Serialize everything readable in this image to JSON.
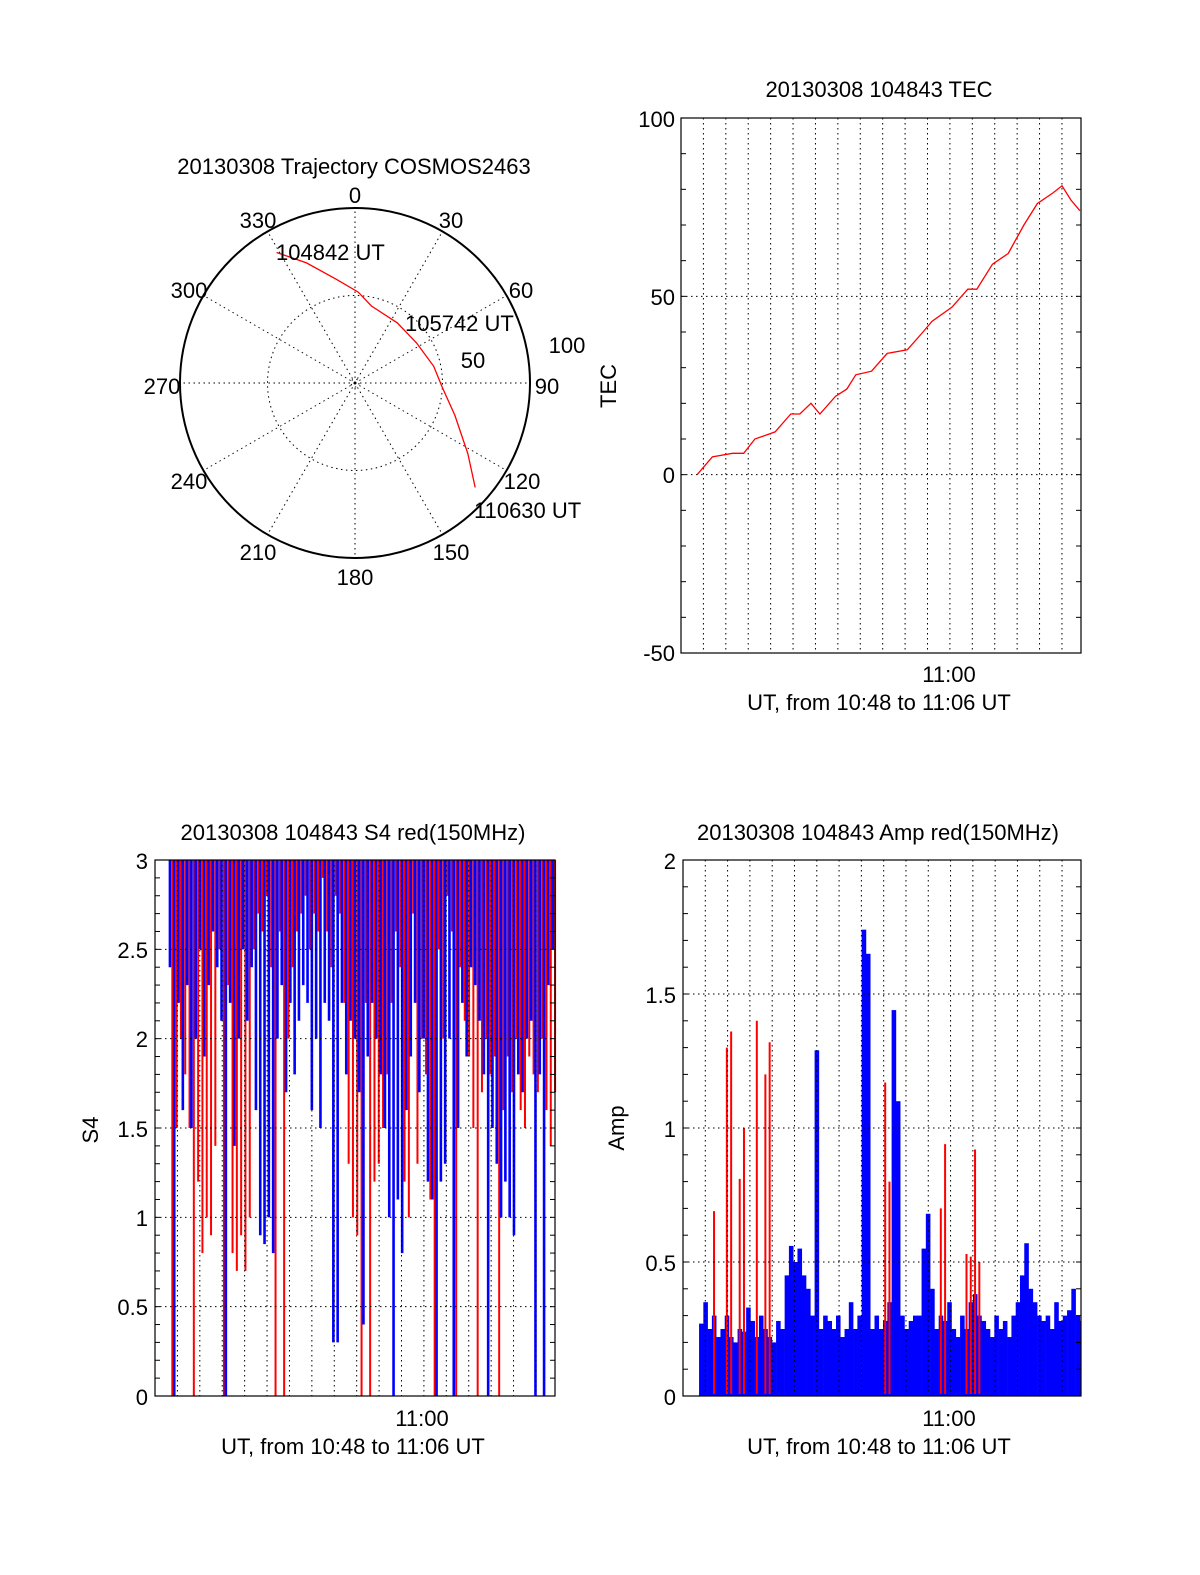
{
  "chart_data": [
    {
      "type": "polar",
      "title": "20130308 Trajectory COSMOS2463",
      "angle_labels": [
        "0",
        "30",
        "60",
        "90",
        "120",
        "150",
        "180",
        "210",
        "240",
        "270",
        "300",
        "330"
      ],
      "radial_labels": [
        "50",
        "100"
      ],
      "rlim": [
        0,
        100
      ],
      "grid": true,
      "series": [
        {
          "name": "trajectory",
          "color": "#ff0000",
          "points_az_r": [
            [
              329,
              87
            ],
            [
              338,
              74
            ],
            [
              350,
              60
            ],
            [
              2,
              52
            ],
            [
              12,
              45
            ],
            [
              35,
              42
            ],
            [
              57,
              42
            ],
            [
              78,
              46
            ],
            [
              93,
              50
            ],
            [
              108,
              60
            ],
            [
              122,
              76
            ],
            [
              131,
              91
            ]
          ]
        }
      ],
      "annotations": [
        {
          "text": "104842 UT",
          "az": 329,
          "r": 87
        },
        {
          "text": "105742 UT",
          "az": 57,
          "r": 42
        },
        {
          "text": "110630 UT",
          "az": 131,
          "r": 91
        }
      ]
    },
    {
      "type": "line",
      "title": "20130308 104843 TEC",
      "xlabel": "UT, from 10:48 to 11:06 UT",
      "ylabel": "TEC",
      "x_units": "minutes after 10:00 UT",
      "xlim": [
        48.0,
        65.85
      ],
      "ylim": [
        -50,
        100
      ],
      "yticks": [
        "100",
        "50",
        "0",
        "-50"
      ],
      "xtick_label": "11:00",
      "grid": true,
      "series": [
        {
          "name": "TEC",
          "color": "#ff0000",
          "x": [
            48.72,
            49.4,
            50.3,
            50.8,
            51.3,
            52.2,
            52.9,
            53.3,
            53.8,
            54.2,
            54.9,
            55.4,
            55.8,
            56.5,
            57.2,
            58.1,
            58.8,
            59.2,
            60.1,
            60.8,
            61.2,
            61.9,
            62.6,
            63.3,
            63.9,
            64.6,
            65.0,
            65.4,
            65.8
          ],
          "y": [
            0,
            5,
            6,
            6,
            10,
            12,
            17,
            17,
            20,
            17,
            22,
            24,
            28,
            29,
            34,
            35,
            40,
            43,
            47,
            52,
            52,
            59,
            62,
            70,
            76,
            79,
            81,
            77,
            74
          ]
        }
      ]
    },
    {
      "type": "line",
      "title": "20130308 104843 S4 red(150MHz)",
      "xlabel": "UT, from 10:48 to 11:06 UT",
      "ylabel": "S4",
      "x_units": "minutes after 10:00 UT",
      "xlim": [
        48.0,
        65.85
      ],
      "ylim": [
        0,
        3
      ],
      "yticks": [
        "3",
        "2.5",
        "2",
        "1.5",
        "1",
        "0.5",
        "0"
      ],
      "xtick_label": "11:00",
      "grid": true,
      "x_start": 48.72,
      "x_end": 65.8,
      "series": [
        {
          "name": "red",
          "color": "#ff0000",
          "values": [
            0,
            1.5,
            2.0,
            1.8,
            1.5,
            0,
            1.2,
            0.8,
            1.0,
            0.9,
            1.4,
            2.5,
            0,
            2.3,
            0.8,
            0.7,
            0.9,
            0.7,
            1.0,
            2.5,
            2.7,
            2.6,
            2.8,
            2.4,
            0,
            2.6,
            0,
            2.0,
            2.4,
            2.6,
            2.7,
            2.8,
            2.5,
            2.7,
            2.6,
            2.9,
            2.6,
            2.4,
            2.8,
            2.7,
            2.2,
            1.3,
            1.0,
            0.9,
            0,
            2.2,
            0,
            1.2,
            1.3,
            1.5,
            1.8,
            2.2,
            2.6,
            2.4,
            1.2,
            1.0,
            2.7,
            1.3,
            2.0,
            1.8,
            1.1,
            0,
            2.5,
            2.0,
            2.8,
            2.6,
            0,
            2.4,
            2.1,
            1.9,
            1.5,
            0,
            1.7,
            2.0,
            1.8,
            1.9,
            0,
            1.6,
            1.9,
            1.7,
            2.0,
            1.6,
            1.5,
            1.9,
            1.8,
            1.7,
            2.0,
            1.6,
            1.4,
            1.7
          ]
        },
        {
          "name": "blue",
          "color": "#0000ff",
          "values": [
            2.4,
            0,
            2.2,
            1.6,
            2.3,
            1.5,
            2.0,
            2.5,
            1.9,
            2.3,
            2.6,
            2.4,
            2.1,
            0,
            2.2,
            1.4,
            2.0,
            2.5,
            2.1,
            2.4,
            1.6,
            0.9,
            0.85,
            1.0,
            0.8,
            2.0,
            2.3,
            1.7,
            2.2,
            1.8,
            2.1,
            2.3,
            2.2,
            1.6,
            2.0,
            1.5,
            2.2,
            2.1,
            0.3,
            0.3,
            2.2,
            1.8,
            2.1,
            2.0,
            1.7,
            0.4,
            1.9,
            2.2,
            2.0,
            1.8,
            1.5,
            1.0,
            0,
            1.1,
            0.8,
            1.6,
            1.9,
            2.2,
            1.7,
            2.0,
            1.2,
            1.1,
            0,
            1.2,
            1.3,
            2.0,
            0,
            1.5,
            2.2,
            1.9,
            2.4,
            2.3,
            2.1,
            1.8,
            0,
            1.5,
            1.3,
            1.0,
            1.2,
            1.0,
            0.9,
            1.8,
            1.7,
            2.0,
            2.1,
            0,
            1.8,
            0,
            2.3,
            2.5
          ]
        }
      ]
    },
    {
      "type": "bar",
      "title": "20130308 104843 Amp red(150MHz)",
      "xlabel": "UT, from 10:48 to 11:06 UT",
      "ylabel": "Amp",
      "x_units": "minutes after 10:00 UT",
      "xlim": [
        48.0,
        65.85
      ],
      "ylim": [
        0,
        2
      ],
      "yticks": [
        "2",
        "1.5",
        "1",
        "0.5",
        "0"
      ],
      "xtick_label": "11:00",
      "grid": true,
      "x_start": 48.72,
      "x_end": 65.8,
      "series": [
        {
          "name": "blue",
          "color": "#0000ff",
          "values": [
            0.27,
            0.35,
            0.25,
            0.3,
            0.22,
            0.25,
            0.3,
            0.22,
            0.2,
            0.25,
            0.24,
            0.33,
            0.28,
            0.22,
            0.3,
            0.25,
            0.22,
            0.2,
            0.28,
            0.25,
            0.45,
            0.56,
            0.5,
            0.55,
            0.45,
            0.4,
            0.3,
            1.29,
            0.25,
            0.3,
            0.28,
            0.25,
            0.3,
            0.22,
            0.25,
            0.35,
            0.25,
            0.3,
            1.74,
            1.65,
            0.25,
            0.3,
            0.25,
            0.28,
            0.35,
            1.44,
            1.1,
            0.3,
            0.25,
            0.28,
            0.3,
            0.3,
            0.55,
            0.68,
            0.4,
            0.25,
            0.3,
            0.28,
            0.35,
            0.25,
            0.22,
            0.3,
            0.25,
            0.35,
            0.38,
            0.3,
            0.28,
            0.25,
            0.22,
            0.3,
            0.25,
            0.28,
            0.22,
            0.3,
            0.35,
            0.45,
            0.57,
            0.4,
            0.35,
            0.3,
            0.28,
            0.3,
            0.25,
            0.35,
            0.28,
            0.3,
            0.32,
            0.4,
            0.3,
            0.28
          ]
        },
        {
          "name": "red",
          "color": "#ff0000",
          "values": [
            0,
            0,
            0,
            0.69,
            0,
            0,
            1.3,
            1.36,
            0,
            0.81,
            1.0,
            0,
            0,
            1.4,
            0,
            1.2,
            1.32,
            0,
            0,
            0,
            0,
            0,
            0,
            0,
            0,
            0,
            0,
            0,
            0,
            0,
            0,
            0,
            0,
            0,
            0,
            0,
            0,
            0,
            0,
            0,
            0,
            0,
            0,
            1.17,
            0.8,
            0,
            0,
            0,
            0,
            0,
            0,
            0,
            0,
            0,
            0,
            0,
            0.7,
            0.94,
            0,
            0,
            0,
            0,
            0.53,
            0.52,
            0.92,
            0.5,
            0,
            0,
            0,
            0,
            0,
            0,
            0,
            0,
            0,
            0,
            0,
            0,
            0,
            0,
            0,
            0,
            0,
            0,
            0,
            0,
            0,
            0,
            0,
            0
          ]
        }
      ]
    }
  ]
}
